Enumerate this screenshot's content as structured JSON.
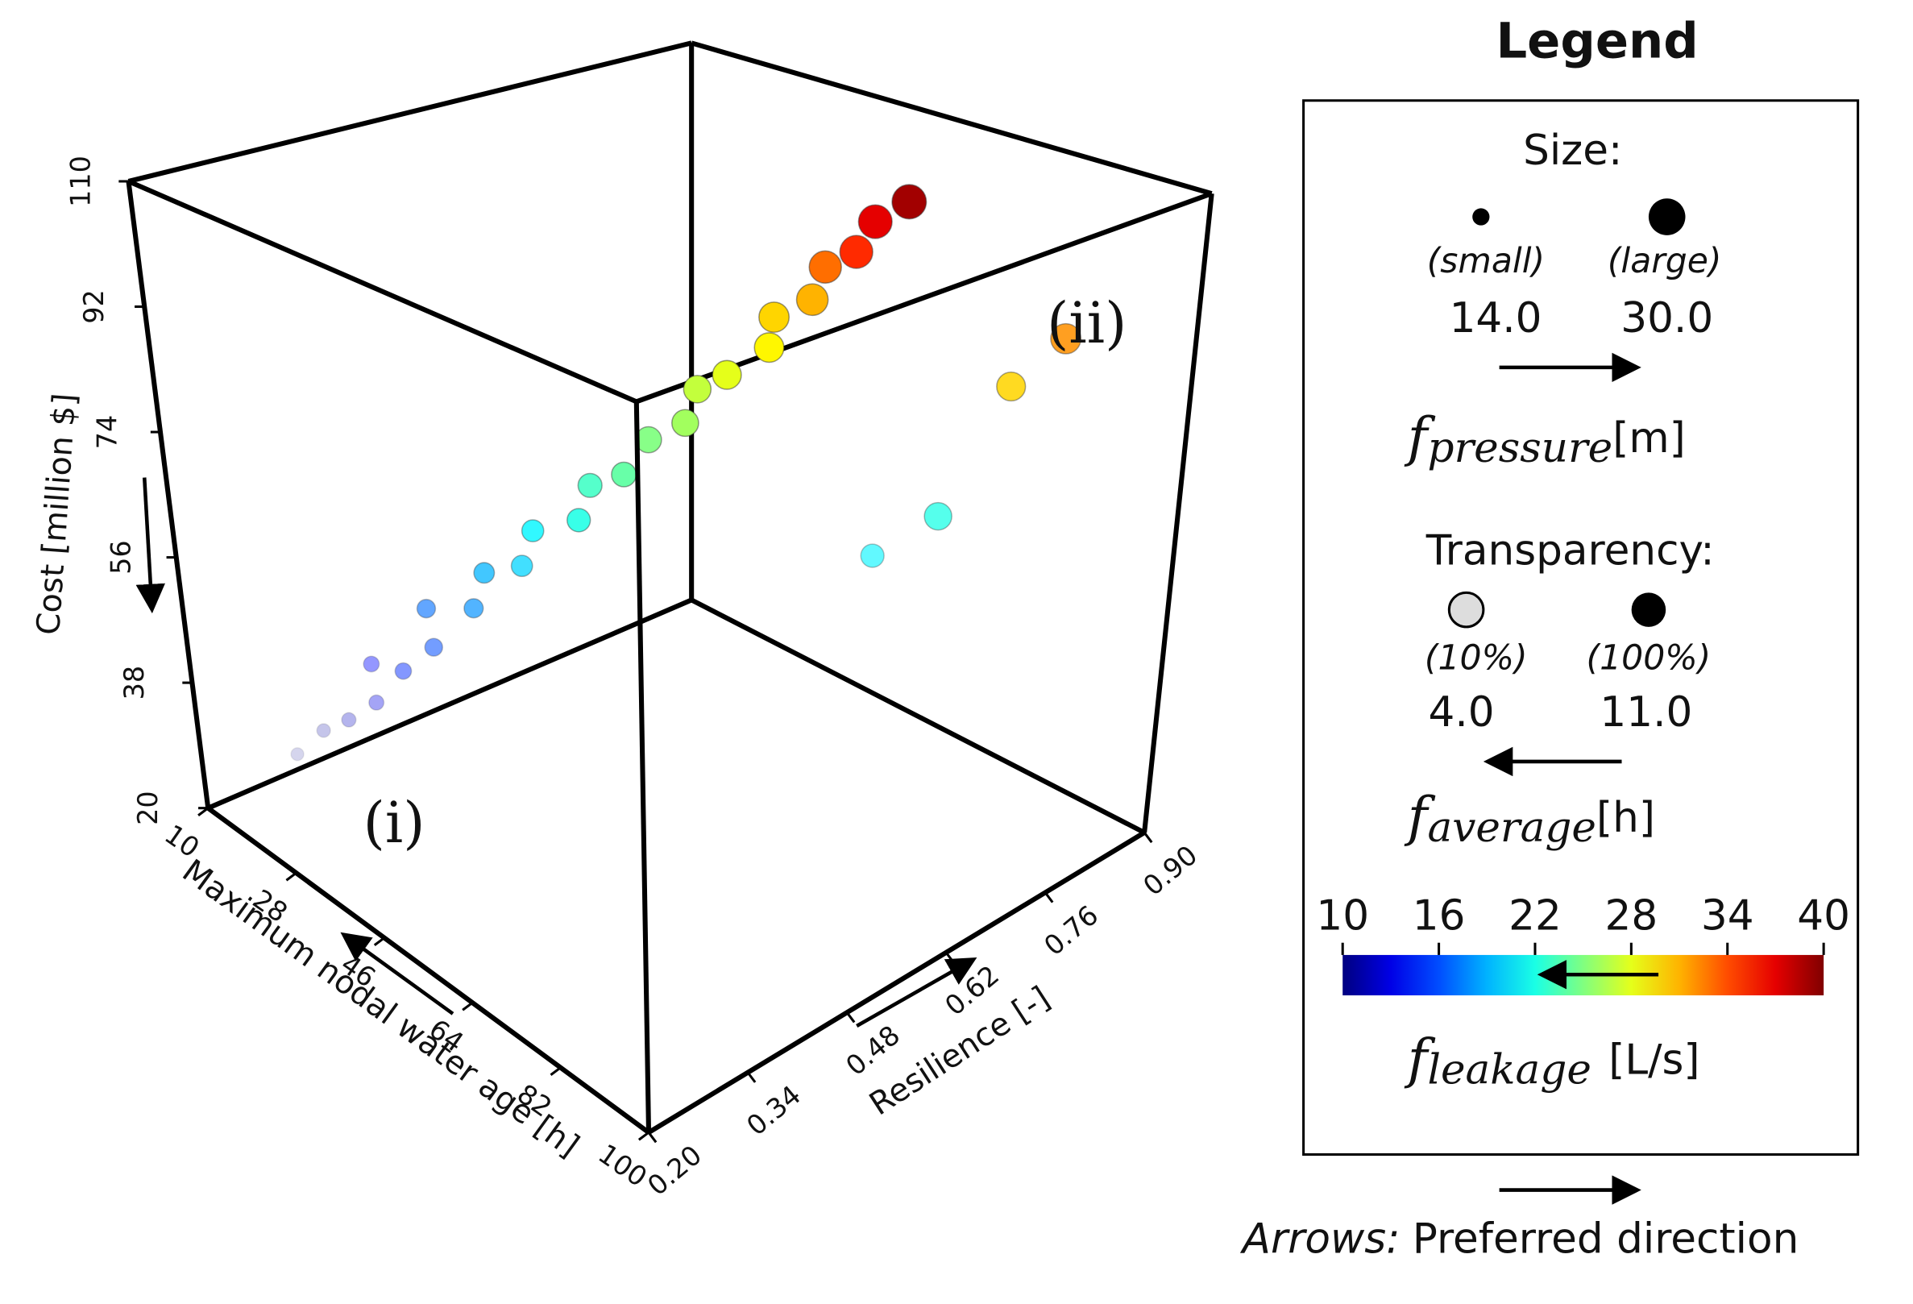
{
  "chart_data": {
    "type": "scatter3d",
    "x_label": "Maximum nodal water age [h]",
    "y_label": "Resilience [-]",
    "z_label": "Cost [million $]",
    "xlim": [
      10,
      100
    ],
    "xticks": [
      10,
      28,
      46,
      64,
      82,
      100
    ],
    "ylim": [
      0.2,
      0.9
    ],
    "yticks": [
      {
        "value": 0.2,
        "label": "0.20"
      },
      0.34,
      0.48,
      0.62,
      0.76,
      {
        "value": 0.9,
        "label": "0.90"
      }
    ],
    "zlim": [
      20,
      110
    ],
    "zticks": [
      20,
      38,
      56,
      74,
      92,
      110
    ],
    "annotations": [
      "(i)",
      "(ii)"
    ],
    "x": [
      15,
      18,
      22,
      25,
      20,
      28,
      30,
      26,
      34,
      32,
      38,
      36,
      42,
      40,
      45,
      44,
      48,
      46,
      50,
      52,
      50,
      54,
      52,
      56,
      55,
      58,
      70,
      75,
      65,
      80
    ],
    "y": [
      0.3,
      0.32,
      0.33,
      0.35,
      0.38,
      0.37,
      0.4,
      0.42,
      0.43,
      0.46,
      0.47,
      0.5,
      0.52,
      0.55,
      0.56,
      0.6,
      0.62,
      0.65,
      0.66,
      0.7,
      0.72,
      0.74,
      0.77,
      0.78,
      0.81,
      0.83,
      0.8,
      0.85,
      0.75,
      0.88
    ],
    "z": [
      26,
      30,
      33,
      36,
      38,
      41,
      44,
      47,
      50,
      53,
      56,
      59,
      62,
      65,
      68,
      71,
      74,
      77,
      80,
      83,
      86,
      89,
      92,
      95,
      98,
      101,
      60,
      78,
      55,
      85
    ],
    "size": [
      14.5,
      15,
      15.5,
      16,
      16.5,
      17,
      18,
      18.5,
      19,
      20,
      20.5,
      21,
      22,
      22.5,
      23,
      24,
      24.5,
      25,
      26,
      26.5,
      27,
      28,
      28.5,
      29,
      29.5,
      30,
      25,
      26,
      22,
      27
    ],
    "alpha": [
      4.5,
      5,
      5.5,
      6,
      6.5,
      7,
      7.5,
      8,
      8.5,
      9,
      9,
      9.5,
      10,
      10,
      10.5,
      10.5,
      11,
      11,
      11,
      11,
      11,
      11,
      11,
      11,
      11,
      11,
      9,
      10,
      8,
      10
    ],
    "color_values": [
      10.5,
      11,
      12,
      13,
      14,
      15,
      16,
      17,
      18,
      19,
      20,
      21,
      22,
      23,
      24,
      25,
      26,
      27,
      28,
      29,
      30,
      31,
      33,
      35,
      37,
      39,
      22,
      30,
      21,
      32
    ],
    "legend": {
      "title": "Legend",
      "size_title": "Size:",
      "size_names": [
        "(small)",
        "(large)"
      ],
      "size_ticks": [
        {
          "value": 14,
          "label": "14.0"
        },
        {
          "value": 30,
          "label": "30.0"
        }
      ],
      "size_symbol": "f",
      "size_sub": "pressure",
      "size_unit": "[m]",
      "alpha_title": "Transparency:",
      "alpha_names": [
        "(10%)",
        "(100%)"
      ],
      "alpha_ticks": [
        {
          "value": 4,
          "label": "4.0"
        },
        {
          "value": 11,
          "label": "11.0"
        }
      ],
      "alpha_symbol": "f",
      "alpha_sub": "average",
      "alpha_unit": "[h]",
      "clim": [
        10,
        40
      ],
      "cticks": [
        10,
        16,
        22,
        28,
        34,
        40
      ],
      "color_symbol": "f",
      "color_sub": "leakage",
      "color_unit": "[L/s]",
      "arrows_label": "Arrows:",
      "arrows_text": "Preferred direction"
    }
  }
}
